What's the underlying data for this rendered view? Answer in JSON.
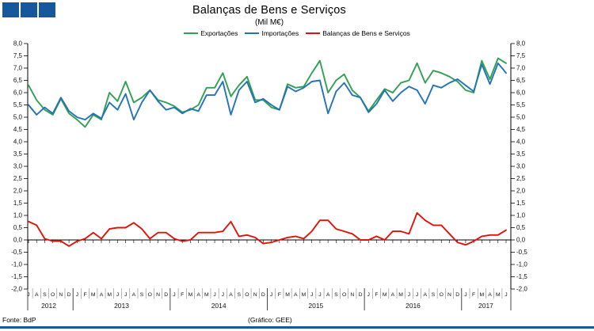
{
  "branding": {
    "logo_color": "#15589e",
    "square_count": 3
  },
  "header": {
    "title": "Balanças de Bens e Serviços",
    "subtitle": "(Mil M€)"
  },
  "footer": {
    "source": "Fonte: BdP",
    "credit": "(Gráfico: GEE)"
  },
  "colors": {
    "exportacoes": "#2ea152",
    "importacoes": "#2273b8",
    "balanca": "#e11309",
    "axis": "#000000"
  },
  "chart_data": {
    "type": "line",
    "title": "Balanças de Bens e Serviços",
    "unit": "Mil M€",
    "grid": false,
    "legend_position": "top",
    "ylim": [
      -2.0,
      8.0
    ],
    "ytick_step": 0.5,
    "y_tick_labels": [
      "8,0",
      "7,5",
      "7,0",
      "6,5",
      "6,0",
      "5,5",
      "5,0",
      "4,5",
      "4,0",
      "3,5",
      "3,0",
      "2,5",
      "2,0",
      "1,5",
      "1,0",
      "0,5",
      "0,0",
      "-0,5",
      "-1,0",
      "-1,5",
      "-2,0"
    ],
    "x_month_labels": [
      "J",
      "A",
      "S",
      "O",
      "N",
      "D",
      "J",
      "F",
      "M",
      "A",
      "M",
      "J",
      "J",
      "A",
      "S",
      "O",
      "N",
      "D",
      "J",
      "F",
      "M",
      "A",
      "M",
      "J",
      "J",
      "A",
      "S",
      "O",
      "N",
      "D",
      "J",
      "F",
      "M",
      "A",
      "M",
      "J",
      "J",
      "A",
      "S",
      "O",
      "N",
      "D",
      "J",
      "F",
      "M",
      "A",
      "M",
      "J",
      "J",
      "A",
      "S",
      "O",
      "N",
      "D",
      "J",
      "F",
      "M",
      "A",
      "M",
      "J"
    ],
    "years": [
      {
        "label": "2012",
        "start": 0,
        "months": 6
      },
      {
        "label": "2013",
        "start": 6,
        "months": 12
      },
      {
        "label": "2014",
        "start": 18,
        "months": 12
      },
      {
        "label": "2015",
        "start": 30,
        "months": 12
      },
      {
        "label": "2016",
        "start": 42,
        "months": 12
      },
      {
        "label": "2017",
        "start": 54,
        "months": 6
      }
    ],
    "series": [
      {
        "id": "exportacoes",
        "name": "Exportações",
        "color": "#2ea152",
        "values": [
          6.3,
          5.7,
          5.3,
          5.1,
          5.75,
          5.15,
          4.9,
          4.6,
          5.1,
          4.9,
          6.0,
          5.65,
          6.45,
          5.6,
          5.8,
          6.1,
          5.7,
          5.6,
          5.45,
          5.2,
          5.3,
          5.5,
          6.2,
          6.2,
          6.8,
          5.85,
          6.3,
          6.65,
          5.7,
          5.7,
          5.4,
          5.3,
          6.35,
          6.2,
          6.25,
          6.8,
          7.3,
          6.0,
          6.5,
          6.75,
          6.1,
          5.8,
          5.25,
          5.7,
          6.15,
          6.0,
          6.4,
          6.5,
          7.2,
          6.4,
          6.9,
          6.8,
          6.65,
          6.45,
          6.1,
          6.0,
          7.3,
          6.55,
          7.4,
          7.2
        ]
      },
      {
        "id": "importacoes",
        "name": "Importações",
        "color": "#2273b8",
        "values": [
          5.5,
          5.1,
          5.4,
          5.15,
          5.8,
          5.25,
          5.0,
          4.9,
          5.15,
          4.95,
          5.6,
          5.3,
          5.95,
          4.9,
          5.6,
          6.1,
          5.65,
          5.3,
          5.4,
          5.15,
          5.35,
          5.25,
          5.9,
          5.9,
          6.45,
          5.1,
          6.1,
          6.45,
          5.6,
          5.75,
          5.5,
          5.3,
          6.25,
          6.05,
          6.2,
          6.45,
          6.5,
          5.15,
          6.05,
          6.4,
          5.9,
          5.8,
          5.2,
          5.55,
          6.1,
          5.65,
          6.0,
          6.25,
          6.1,
          5.55,
          6.3,
          6.2,
          6.4,
          6.55,
          6.3,
          6.05,
          7.15,
          6.35,
          7.2,
          6.8
        ]
      },
      {
        "id": "balanca",
        "name": "Balanças de Bens e Serviços",
        "color": "#e11309",
        "values": [
          0.75,
          0.6,
          0.05,
          -0.05,
          -0.05,
          -0.25,
          -0.05,
          0.05,
          0.3,
          0.05,
          0.45,
          0.5,
          0.5,
          0.7,
          0.45,
          0.05,
          0.3,
          0.3,
          0.05,
          -0.05,
          0.0,
          0.3,
          0.3,
          0.3,
          0.35,
          0.75,
          0.15,
          0.2,
          0.1,
          -0.15,
          -0.1,
          0.0,
          0.1,
          0.15,
          0.05,
          0.35,
          0.8,
          0.8,
          0.45,
          0.35,
          0.25,
          0.0,
          0.0,
          0.15,
          0.0,
          0.35,
          0.35,
          0.25,
          1.1,
          0.8,
          0.6,
          0.6,
          0.25,
          -0.1,
          -0.2,
          -0.05,
          0.15,
          0.2,
          0.2,
          0.4
        ]
      }
    ]
  }
}
